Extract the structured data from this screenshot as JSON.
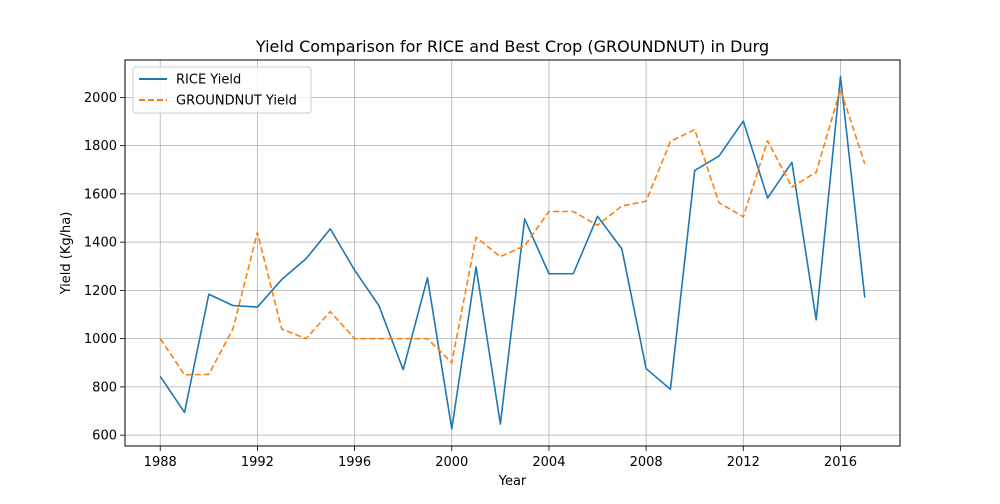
{
  "chart_data": {
    "type": "line",
    "title": "Yield Comparison for RICE and Best Crop (GROUNDNUT) in Durg",
    "xlabel": "Year",
    "ylabel": "Yield (Kg/ha)",
    "xlim": [
      1986.55,
      2018.45
    ],
    "ylim": [
      555,
      2155
    ],
    "xticks": [
      1988,
      1992,
      1996,
      2000,
      2004,
      2008,
      2012,
      2016
    ],
    "yticks": [
      600,
      800,
      1000,
      1200,
      1400,
      1600,
      1800,
      2000
    ],
    "grid": true,
    "legend": {
      "position": "top-left"
    },
    "x": [
      1988,
      1989,
      1990,
      1991,
      1992,
      1993,
      1994,
      1995,
      1996,
      1997,
      1998,
      1999,
      2000,
      2001,
      2002,
      2003,
      2004,
      2005,
      2006,
      2007,
      2008,
      2009,
      2010,
      2011,
      2012,
      2013,
      2014,
      2015,
      2016,
      2017
    ],
    "series": [
      {
        "name": "RICE Yield",
        "color": "#1f77b4",
        "dash": "solid",
        "values": [
          844,
          694,
          1184,
          1137,
          1131,
          1245,
          1331,
          1455,
          1284,
          1137,
          871,
          1252,
          626,
          1297,
          646,
          1496,
          1269,
          1269,
          1507,
          1372,
          876,
          790,
          1697,
          1757,
          1902,
          1583,
          1731,
          1078,
          2087,
          1170
        ]
      },
      {
        "name": "GROUNDNUT Yield",
        "color": "#ff7f0e",
        "dash": "dashed",
        "values": [
          1000,
          850,
          852,
          1042,
          1440,
          1040,
          1000,
          1112,
          1000,
          1000,
          1000,
          1000,
          900,
          1420,
          1340,
          1385,
          1527,
          1527,
          1470,
          1550,
          1570,
          1817,
          1867,
          1563,
          1505,
          1820,
          1628,
          1690,
          2033,
          1725
        ]
      }
    ]
  }
}
